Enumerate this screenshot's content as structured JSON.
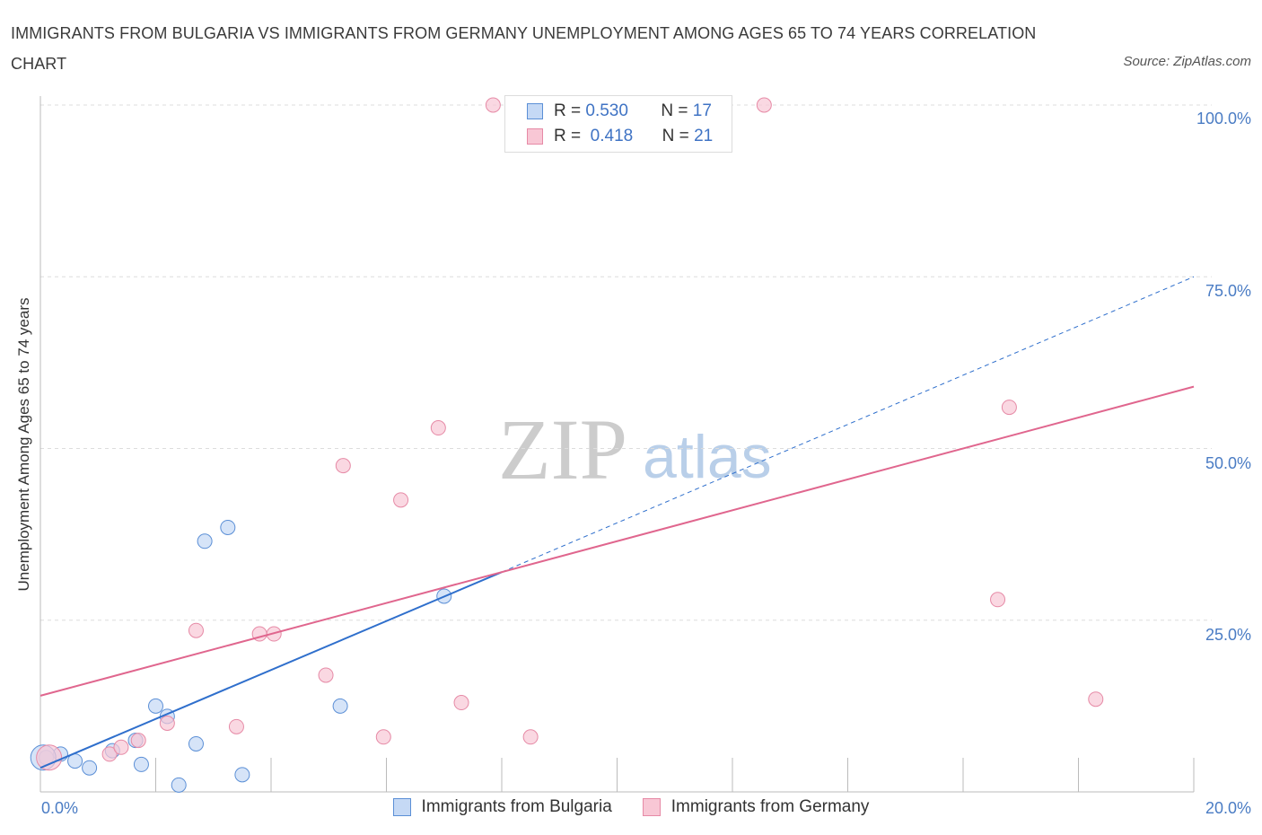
{
  "chart_data": {
    "type": "scatter",
    "title": "IMMIGRANTS FROM BULGARIA VS IMMIGRANTS FROM GERMANY UNEMPLOYMENT AMONG AGES 65 TO 74 YEARS CORRELATION CHART",
    "source": "Source: ZipAtlas.com",
    "ylabel": "Unemployment Among Ages 65 to 74 years",
    "xlim": [
      0,
      20
    ],
    "ylim": [
      0,
      100
    ],
    "x_ticks": [
      "0.0%",
      "20.0%"
    ],
    "y_ticks": [
      "100.0%",
      "75.0%",
      "50.0%",
      "25.0%"
    ],
    "watermark": [
      "ZIP",
      "atlas"
    ],
    "legend_stats": [
      {
        "r_label": "R =",
        "r": "0.530",
        "n_label": "N =",
        "n": "17"
      },
      {
        "r_label": "R =",
        "r": "0.418",
        "n_label": "N =",
        "n": "21"
      }
    ],
    "series": [
      {
        "name": "Immigrants from Bulgaria",
        "color": "#5b8fd6",
        "fill": "#c5d9f5",
        "points": [
          [
            0.1,
            5.0
          ],
          [
            0.35,
            5.5
          ],
          [
            0.6,
            4.5
          ],
          [
            0.85,
            3.5
          ],
          [
            1.25,
            6.0
          ],
          [
            1.65,
            7.5
          ],
          [
            1.75,
            4.0
          ],
          [
            2.0,
            12.5
          ],
          [
            2.2,
            11.0
          ],
          [
            2.4,
            1.0
          ],
          [
            2.7,
            7.0
          ],
          [
            2.85,
            36.5
          ],
          [
            3.25,
            38.5
          ],
          [
            3.5,
            2.5
          ],
          [
            5.2,
            12.5
          ],
          [
            7.0,
            28.5
          ],
          [
            0.05,
            5.0
          ]
        ],
        "trend": {
          "x0": 0.0,
          "y0": 3.5,
          "x1": 8.0,
          "y1": 32.0,
          "dash_to_x": 20.0,
          "dash_to_y": 75.0,
          "color": "#2f6fcc"
        }
      },
      {
        "name": "Immigrants from Germany",
        "color": "#e68aa6",
        "fill": "#f8c7d5",
        "points": [
          [
            0.15,
            5.0
          ],
          [
            1.2,
            5.5
          ],
          [
            1.7,
            7.5
          ],
          [
            2.2,
            10.0
          ],
          [
            2.7,
            23.5
          ],
          [
            3.4,
            9.5
          ],
          [
            3.8,
            23.0
          ],
          [
            4.05,
            23.0
          ],
          [
            4.95,
            17.0
          ],
          [
            5.25,
            47.5
          ],
          [
            5.95,
            8.0
          ],
          [
            6.25,
            42.5
          ],
          [
            6.9,
            53.0
          ],
          [
            7.3,
            13.0
          ],
          [
            7.85,
            100.0
          ],
          [
            8.5,
            8.0
          ],
          [
            12.55,
            100.0
          ],
          [
            16.6,
            28.0
          ],
          [
            16.8,
            56.0
          ],
          [
            18.3,
            13.5
          ],
          [
            1.4,
            6.5
          ]
        ],
        "trend": {
          "x0": 0.0,
          "y0": 14.0,
          "x1": 20.0,
          "y1": 59.0,
          "color": "#e0668e"
        }
      }
    ]
  }
}
